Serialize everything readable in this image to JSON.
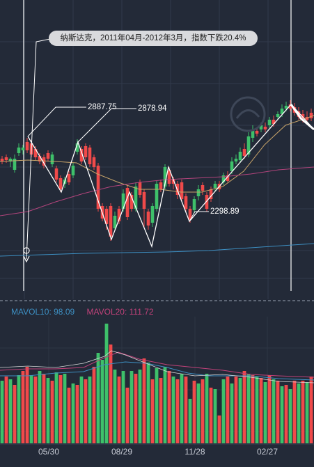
{
  "annotation": {
    "text": "纳斯达克，2011年04月-2012年3月，指数下跌20.4%"
  },
  "price_labels": {
    "p1": "2887.75",
    "p2": "2878.94",
    "p3": "2298.89"
  },
  "volume_legend": {
    "mavol10": "MAVOL10: 98.09",
    "mavol20": "MAVOL20: 111.72",
    "mavol10_color": "#3d8fc2",
    "mavol20_color": "#c2427a"
  },
  "x_axis": [
    "05/30",
    "08/29",
    "11/28",
    "02/27"
  ],
  "colors": {
    "up": "#3ec06a",
    "down": "#f04a4a",
    "background": "#232a38"
  },
  "chart_data": {
    "type": "candlestick",
    "x_ticks": [
      "05/30",
      "08/29",
      "11/28",
      "02/27"
    ],
    "annotations": [
      "2887.75",
      "2878.94",
      "2298.89"
    ],
    "moving_average_labels": [
      "MAVOL10: 98.09",
      "MAVOL20: 111.72"
    ]
  }
}
